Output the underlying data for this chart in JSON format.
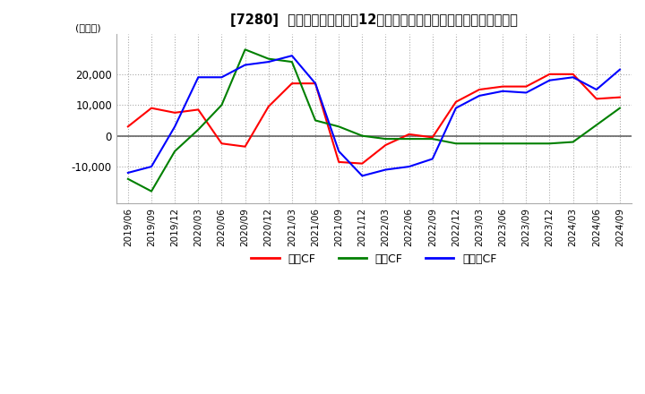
{
  "title": "[7280]  キャッシュフローの12か月移動合計の対前年同期増減額の推移",
  "ylabel": "(百万円)",
  "ylim": [
    -22000,
    33000
  ],
  "yticks": [
    -10000,
    0,
    10000,
    20000
  ],
  "legend_labels": [
    "営業CF",
    "投資CF",
    "フリーCF"
  ],
  "x_labels": [
    "2019/06",
    "2019/09",
    "2019/12",
    "2020/03",
    "2020/06",
    "2020/09",
    "2020/12",
    "2021/03",
    "2021/06",
    "2021/09",
    "2021/12",
    "2022/03",
    "2022/06",
    "2022/09",
    "2022/12",
    "2023/03",
    "2023/06",
    "2023/09",
    "2023/12",
    "2024/03",
    "2024/06",
    "2024/09"
  ],
  "operating_cf": [
    3000,
    9000,
    7500,
    8500,
    -2500,
    -3500,
    9500,
    17000,
    17000,
    -8500,
    -9000,
    -3000,
    500,
    -500,
    11000,
    15000,
    16000,
    16000,
    20000,
    20000,
    12000,
    12500
  ],
  "investing_cf": [
    -14000,
    -18000,
    -5000,
    2000,
    10000,
    28000,
    25000,
    24000,
    5000,
    3000,
    0,
    -1000,
    -1000,
    -1000,
    -2500,
    -2500,
    -2500,
    -2500,
    -2500,
    -2000,
    3500,
    9000
  ],
  "free_cf": [
    -12000,
    -10000,
    3000,
    19000,
    19000,
    23000,
    24000,
    26000,
    17000,
    -5000,
    -13000,
    -11000,
    -10000,
    -7500,
    9000,
    13000,
    14500,
    14000,
    18000,
    19000,
    15000,
    21500
  ],
  "line_colors": [
    "#ff0000",
    "#008000",
    "#0000ff"
  ],
  "background_color": "#ffffff",
  "grid_color": "#aaaaaa",
  "zero_line_color": "#666666"
}
